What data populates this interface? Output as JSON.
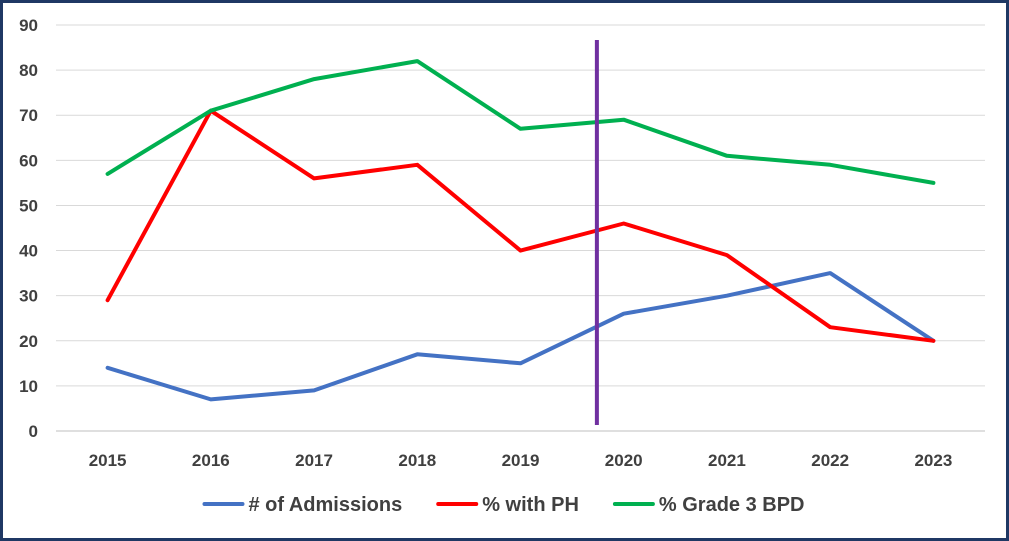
{
  "chart_data": {
    "type": "line",
    "title": "",
    "xlabel": "",
    "ylabel": "",
    "categories": [
      "2015",
      "2016",
      "2017",
      "2018",
      "2019",
      "2020",
      "2021",
      "2022",
      "2023"
    ],
    "ylim": [
      0,
      90
    ],
    "yticks": [
      "0",
      "10",
      "20",
      "30",
      "40",
      "50",
      "60",
      "70",
      "80",
      "90"
    ],
    "grid": true,
    "legend_position": "bottom",
    "series": [
      {
        "name": "# of Admissions",
        "color": "#4472c4",
        "values": [
          14,
          7,
          9,
          17,
          15,
          26,
          30,
          35,
          20
        ]
      },
      {
        "name": "% with PH",
        "color": "#ff0000",
        "values": [
          29,
          71,
          56,
          59,
          40,
          46,
          39,
          23,
          20
        ]
      },
      {
        "name": "% Grade 3 BPD",
        "color": "#00b050",
        "values": [
          57,
          71,
          78,
          82,
          67,
          69,
          61,
          59,
          55
        ]
      }
    ],
    "marker_line": {
      "color": "#7030a0",
      "between": [
        "2019",
        "2020"
      ]
    }
  }
}
